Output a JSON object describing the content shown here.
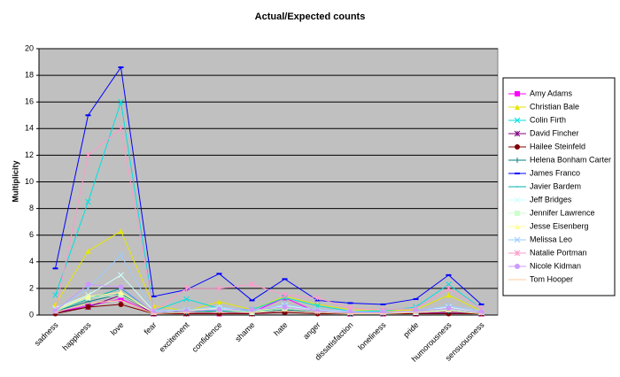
{
  "chart_data": {
    "type": "line",
    "title": "Actual/Expected counts",
    "y_label": "Multiplicity",
    "categories": [
      "sadness",
      "happiness",
      "love",
      "fear",
      "excitement",
      "confidence",
      "shame",
      "hate",
      "anger",
      "dissatisfaction",
      "loneliness",
      "pride",
      "humorousness",
      "sensuousness"
    ],
    "ylim": [
      0,
      20
    ],
    "yticks": [
      0,
      2,
      4,
      6,
      8,
      10,
      12,
      14,
      16,
      18,
      20
    ],
    "grid": true,
    "legend": "right",
    "series": [
      {
        "name": "Amy Adams",
        "color": "#ff00ff",
        "values": [
          0.2,
          0.7,
          1.2,
          0.1,
          0.2,
          0.1,
          0.2,
          1.3,
          0.2,
          0.1,
          0.1,
          0.1,
          0.2,
          0.1
        ]
      },
      {
        "name": "Christian Bale",
        "color": "#e6e600",
        "values": [
          0.8,
          4.8,
          6.3,
          0.7,
          0.3,
          1.0,
          0.4,
          1.4,
          0.8,
          0.4,
          0.3,
          0.4,
          1.5,
          0.3
        ]
      },
      {
        "name": "Colin Firth",
        "color": "#00e0e0",
        "values": [
          1.5,
          8.5,
          16,
          0.3,
          1.2,
          0.5,
          0.4,
          1.3,
          0.7,
          0.3,
          0.3,
          0.6,
          2.3,
          0.5
        ]
      },
      {
        "name": "David Fincher",
        "color": "#800080",
        "values": [
          0.2,
          0.6,
          1.5,
          0.1,
          0.1,
          0.2,
          0.1,
          0.3,
          0.2,
          0.1,
          0.1,
          0.1,
          0.2,
          0.1
        ]
      },
      {
        "name": "Hailee Steinfeld",
        "color": "#800000",
        "values": [
          0.1,
          0.6,
          0.8,
          0.1,
          0.1,
          0.1,
          0.1,
          0.2,
          0.1,
          0.1,
          0.1,
          0.1,
          0.1,
          0.1
        ]
      },
      {
        "name": "Helena Bonham Carter",
        "color": "#008080",
        "values": [
          0.3,
          1.0,
          1.6,
          0.2,
          0.2,
          0.3,
          0.2,
          0.4,
          0.2,
          0.1,
          0.1,
          0.2,
          0.3,
          0.1
        ]
      },
      {
        "name": "James Franco",
        "color": "#0000ff",
        "values": [
          3.5,
          15,
          18.6,
          1.4,
          1.9,
          3.1,
          1.1,
          2.7,
          1.1,
          0.9,
          0.8,
          1.2,
          3.0,
          0.8
        ]
      },
      {
        "name": "Javier Bardem",
        "color": "#00b0b0",
        "values": [
          0.3,
          1.2,
          2.0,
          0.2,
          0.3,
          0.3,
          0.3,
          0.5,
          0.3,
          0.2,
          0.2,
          0.2,
          0.4,
          0.2
        ]
      },
      {
        "name": "Jeff Bridges",
        "color": "#ccffff",
        "values": [
          0.5,
          1.5,
          3.0,
          0.3,
          0.4,
          0.5,
          0.3,
          0.7,
          0.4,
          0.2,
          0.2,
          0.3,
          0.6,
          0.2
        ]
      },
      {
        "name": "Jennifer Lawrence",
        "color": "#ccffcc",
        "values": [
          0.3,
          1.3,
          1.5,
          0.2,
          0.3,
          0.4,
          0.2,
          0.5,
          0.3,
          0.2,
          0.2,
          0.2,
          0.4,
          0.2
        ]
      },
      {
        "name": "Jesse Eisenberg",
        "color": "#ffff99",
        "values": [
          0.4,
          1.4,
          1.7,
          0.2,
          0.3,
          0.6,
          0.3,
          0.6,
          0.3,
          0.2,
          0.2,
          0.3,
          0.5,
          0.2
        ]
      },
      {
        "name": "Melissa Leo",
        "color": "#99ccff",
        "values": [
          0.4,
          2.0,
          4.5,
          0.3,
          0.4,
          0.6,
          0.3,
          0.8,
          0.4,
          0.3,
          0.2,
          0.3,
          0.7,
          0.3
        ]
      },
      {
        "name": "Natalie Portman",
        "color": "#ff99cc",
        "values": [
          0.3,
          12,
          14,
          0.3,
          2.0,
          2.0,
          2.3,
          1.5,
          1.3,
          0.5,
          0.4,
          0.5,
          2.0,
          0.5
        ]
      },
      {
        "name": "Nicole Kidman",
        "color": "#cc99ff",
        "values": [
          0.3,
          2.3,
          2.1,
          0.2,
          0.3,
          0.4,
          0.4,
          0.6,
          0.3,
          0.2,
          0.2,
          0.3,
          0.5,
          0.2
        ]
      },
      {
        "name": "Tom Hooper",
        "color": "#ffcc99",
        "values": [
          0.2,
          0.9,
          1.1,
          0.1,
          0.2,
          0.2,
          0.2,
          0.3,
          0.2,
          0.1,
          0.1,
          0.2,
          0.3,
          0.1
        ]
      }
    ]
  }
}
